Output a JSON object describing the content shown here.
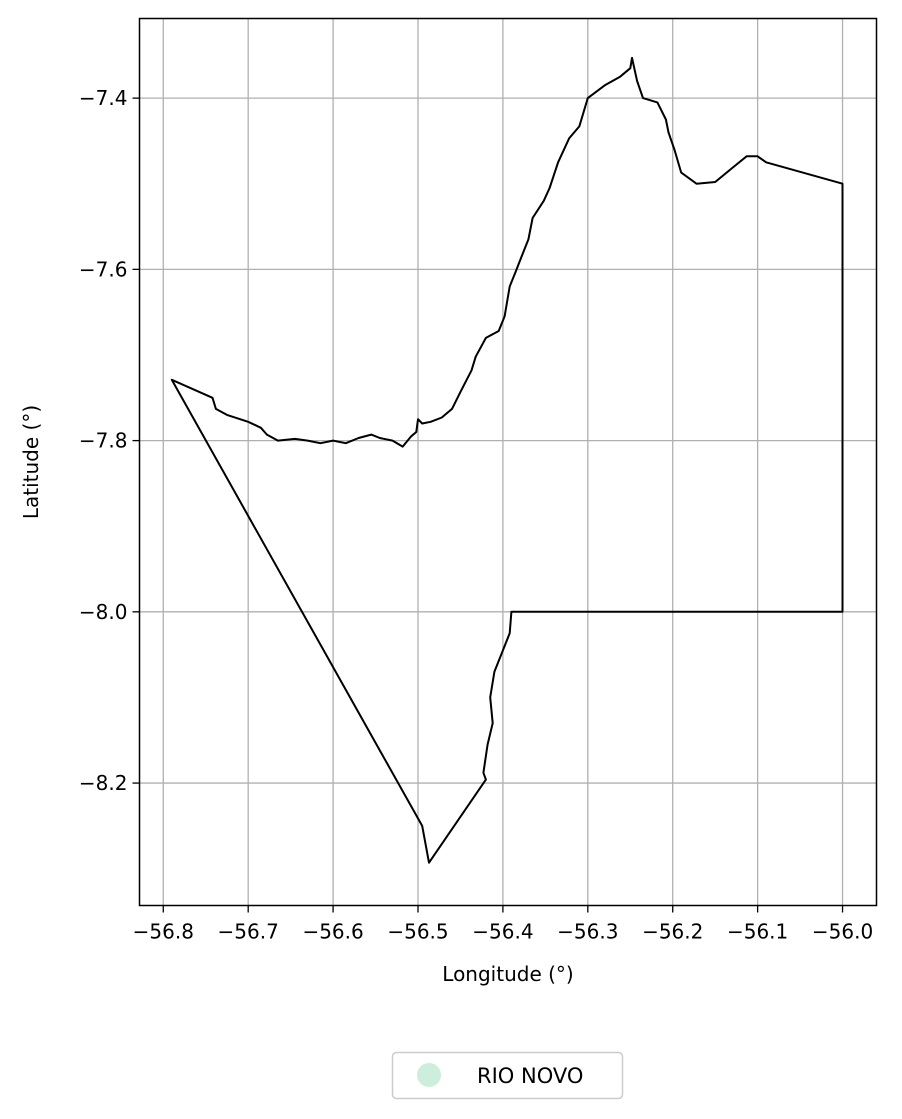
{
  "chart_data": {
    "type": "map",
    "title": "",
    "xlabel": "Longitude (°)",
    "ylabel": "Latitude (°)",
    "xlim": [
      -56.828,
      -55.96
    ],
    "ylim": [
      -8.343,
      -7.307
    ],
    "x_ticks": [
      -56.8,
      -56.7,
      -56.6,
      -56.5,
      -56.4,
      -56.3,
      -56.2,
      -56.1,
      -56.0
    ],
    "x_tick_labels": [
      "−56.8",
      "−56.7",
      "−56.6",
      "−56.5",
      "−56.4",
      "−56.3",
      "−56.2",
      "−56.1",
      "−56.0"
    ],
    "y_ticks": [
      -7.4,
      -7.6,
      -7.8,
      -8.0,
      -8.2
    ],
    "y_tick_labels": [
      "−7.4",
      "−7.6",
      "−7.8",
      "−8.0",
      "−8.2"
    ],
    "grid": true,
    "legend_position": "bottom-center",
    "legend": [
      {
        "name": "RIO NOVO",
        "color": "#cdeedd"
      }
    ],
    "boundary_color": "#000000",
    "boundary": [
      [
        -56.79,
        -7.729
      ],
      [
        -56.742,
        -7.75
      ],
      [
        -56.738,
        -7.763
      ],
      [
        -56.725,
        -7.77
      ],
      [
        -56.7,
        -7.778
      ],
      [
        -56.685,
        -7.785
      ],
      [
        -56.678,
        -7.793
      ],
      [
        -56.665,
        -7.8
      ],
      [
        -56.645,
        -7.798
      ],
      [
        -56.63,
        -7.8
      ],
      [
        -56.615,
        -7.803
      ],
      [
        -56.6,
        -7.8
      ],
      [
        -56.585,
        -7.803
      ],
      [
        -56.57,
        -7.797
      ],
      [
        -56.555,
        -7.793
      ],
      [
        -56.545,
        -7.797
      ],
      [
        -56.53,
        -7.8
      ],
      [
        -56.518,
        -7.807
      ],
      [
        -56.508,
        -7.795
      ],
      [
        -56.502,
        -7.79
      ],
      [
        -56.5,
        -7.775
      ],
      [
        -56.495,
        -7.78
      ],
      [
        -56.485,
        -7.778
      ],
      [
        -56.472,
        -7.773
      ],
      [
        -56.46,
        -7.763
      ],
      [
        -56.45,
        -7.743
      ],
      [
        -56.437,
        -7.718
      ],
      [
        -56.432,
        -7.702
      ],
      [
        -56.42,
        -7.68
      ],
      [
        -56.405,
        -7.672
      ],
      [
        -56.398,
        -7.655
      ],
      [
        -56.392,
        -7.62
      ],
      [
        -56.385,
        -7.603
      ],
      [
        -56.378,
        -7.585
      ],
      [
        -56.37,
        -7.565
      ],
      [
        -56.365,
        -7.54
      ],
      [
        -56.352,
        -7.52
      ],
      [
        -56.345,
        -7.505
      ],
      [
        -56.335,
        -7.475
      ],
      [
        -56.322,
        -7.447
      ],
      [
        -56.31,
        -7.433
      ],
      [
        -56.3,
        -7.4
      ],
      [
        -56.28,
        -7.385
      ],
      [
        -56.262,
        -7.375
      ],
      [
        -56.25,
        -7.365
      ],
      [
        -56.248,
        -7.353
      ],
      [
        -56.242,
        -7.38
      ],
      [
        -56.235,
        -7.4
      ],
      [
        -56.218,
        -7.405
      ],
      [
        -56.208,
        -7.425
      ],
      [
        -56.205,
        -7.44
      ],
      [
        -56.198,
        -7.46
      ],
      [
        -56.19,
        -7.487
      ],
      [
        -56.172,
        -7.5
      ],
      [
        -56.15,
        -7.498
      ],
      [
        -56.128,
        -7.48
      ],
      [
        -56.113,
        -7.468
      ],
      [
        -56.1,
        -7.468
      ],
      [
        -56.09,
        -7.475
      ],
      [
        -56.0,
        -7.5
      ],
      [
        -56.0,
        -8.0
      ],
      [
        -56.39,
        -8.0
      ],
      [
        -56.392,
        -8.025
      ],
      [
        -56.4,
        -8.045
      ],
      [
        -56.41,
        -8.07
      ],
      [
        -56.415,
        -8.1
      ],
      [
        -56.412,
        -8.13
      ],
      [
        -56.418,
        -8.155
      ],
      [
        -56.423,
        -8.188
      ],
      [
        -56.42,
        -8.196
      ],
      [
        -56.487,
        -8.293
      ],
      [
        -56.495,
        -8.25
      ],
      [
        -56.79,
        -7.729
      ]
    ]
  }
}
